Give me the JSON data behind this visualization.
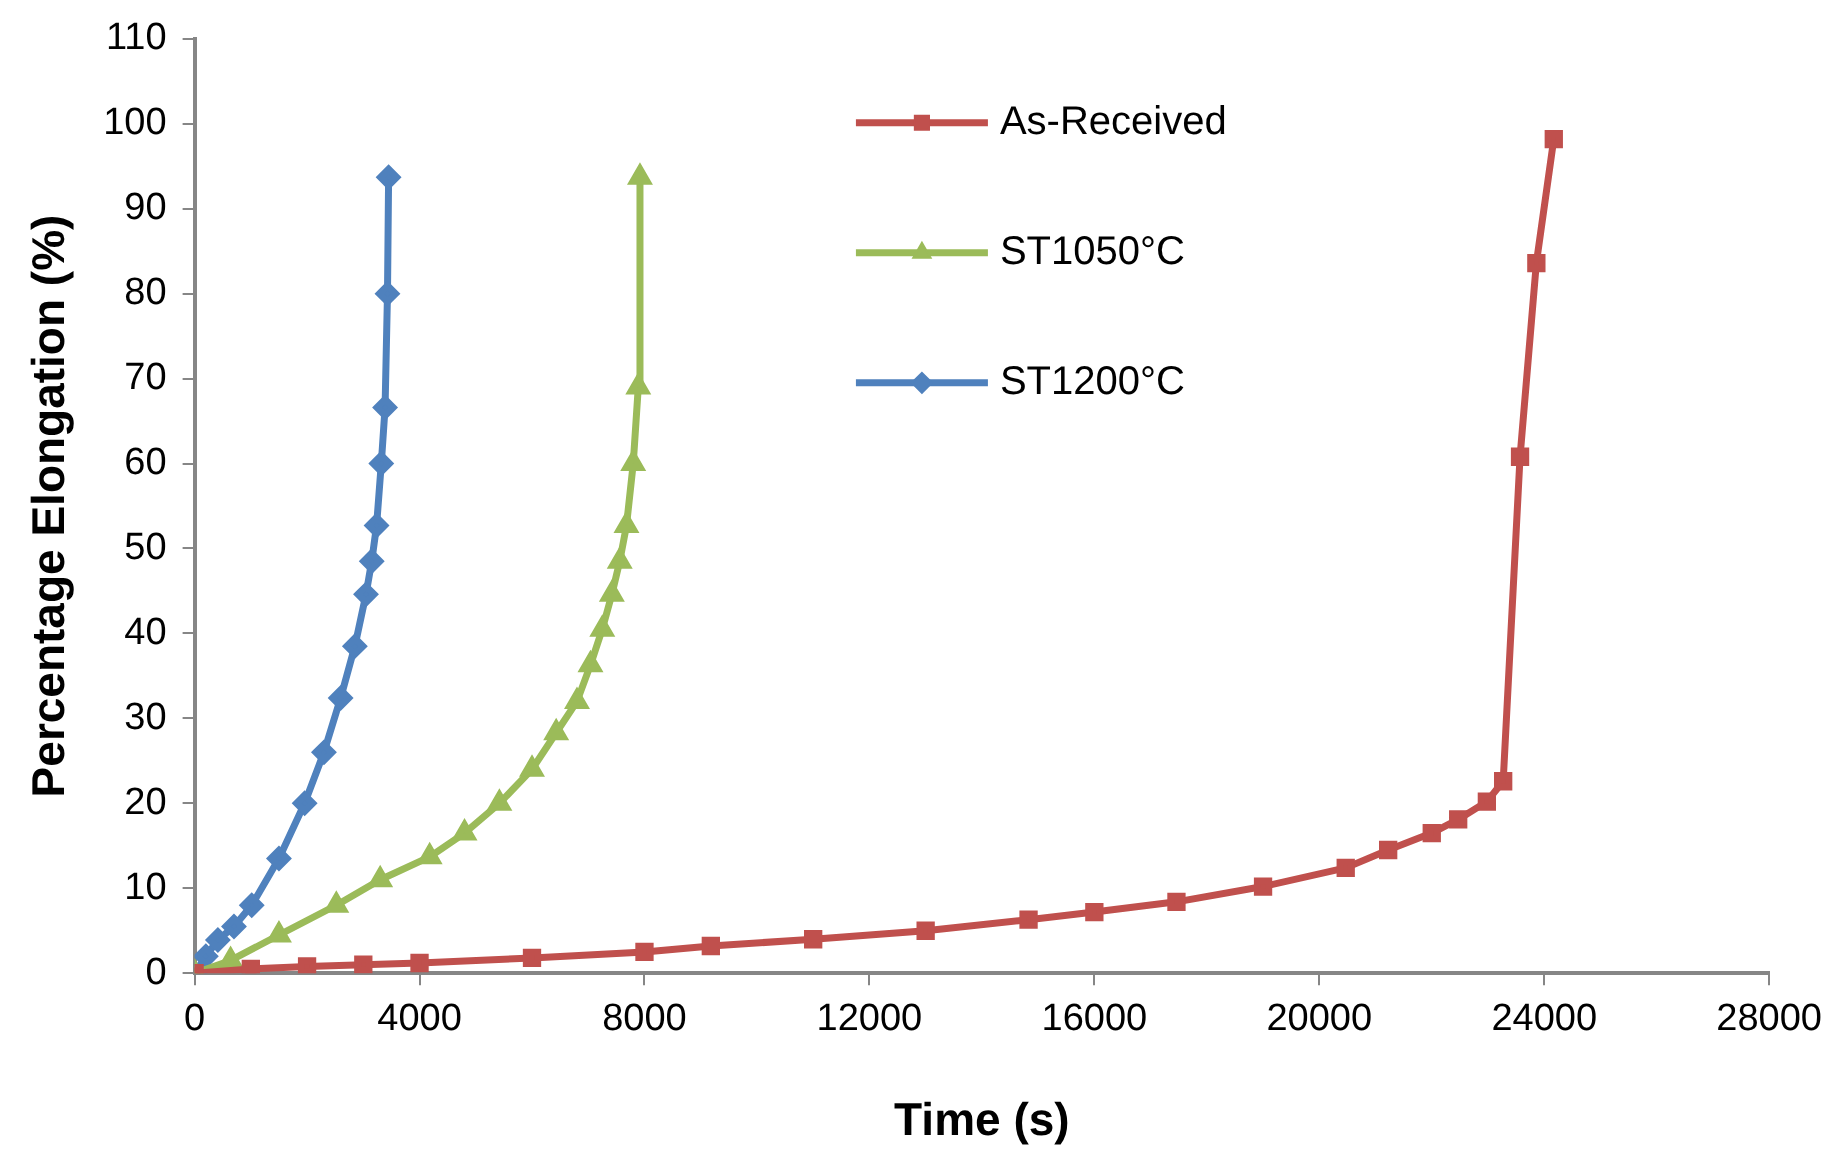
{
  "chart_data": {
    "type": "line",
    "xlabel": "Time (s)",
    "ylabel": "Percentage Elongation (%)",
    "xlim": [
      0,
      28000
    ],
    "xticks": [
      0,
      4000,
      8000,
      12000,
      16000,
      20000,
      24000,
      28000
    ],
    "ylim": [
      0,
      110
    ],
    "yticks": [
      0,
      10,
      20,
      30,
      40,
      50,
      60,
      70,
      80,
      90,
      100,
      110
    ],
    "grid": false,
    "legend": "top right",
    "line_style": "solid",
    "series": [
      {
        "name": "As-Received",
        "color": "#c0504d",
        "marker": "square",
        "x": [
          0,
          1000,
          2000,
          3000,
          4000,
          6000,
          8000,
          9180,
          11000,
          13000,
          14830,
          16000,
          17460,
          19000,
          20470,
          21225,
          22000,
          22470,
          22980,
          23270,
          23570,
          23860,
          24170
        ],
        "values": [
          0,
          0.5,
          0.8,
          1,
          1.2,
          1.8,
          2.5,
          3.2,
          4,
          5,
          6.3,
          7.2,
          8.4,
          10.2,
          12.4,
          14.5,
          16.5,
          18.1,
          20.2,
          22.6,
          60.8,
          83.6,
          98.2
        ]
      },
      {
        "name": "ST1050°C",
        "color": "#9bbb59",
        "marker": "triangle",
        "x": [
          0,
          640,
          1500,
          2520,
          3300,
          4180,
          4800,
          5420,
          6000,
          6430,
          6800,
          7040,
          7250,
          7420,
          7560,
          7680,
          7800,
          7890,
          7920
        ],
        "values": [
          0,
          1.5,
          4.5,
          8,
          11,
          13.7,
          16.5,
          20,
          24,
          28.3,
          32,
          36.3,
          40.5,
          44.6,
          48.5,
          52.7,
          60,
          69,
          93.7
        ]
      },
      {
        "name": "ST1200°C",
        "color": "#4f81bd",
        "marker": "diamond",
        "x": [
          0,
          200,
          414,
          700,
          1016,
          1500,
          1957,
          2300,
          2597,
          2850,
          3048,
          3150,
          3236,
          3320,
          3387,
          3430,
          3450
        ],
        "values": [
          0,
          2,
          3.9,
          5.5,
          8,
          13.5,
          20,
          26,
          32.4,
          38.5,
          44.6,
          48.5,
          52.7,
          60,
          66.6,
          80,
          93.7
        ]
      }
    ]
  }
}
